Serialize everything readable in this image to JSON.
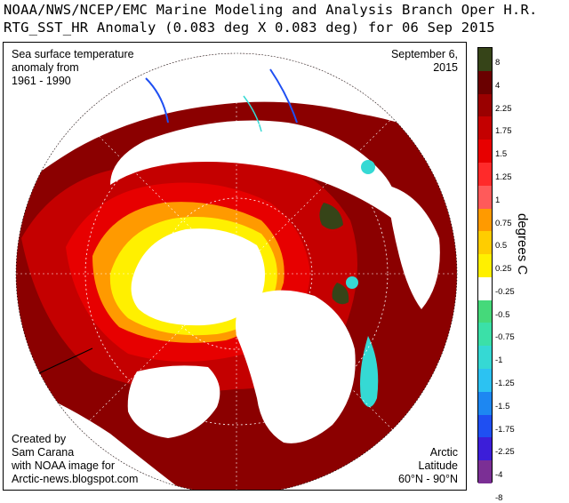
{
  "header": {
    "title_line1": "NOAA/NWS/NCEP/EMC Marine Modeling and Analysis Branch Oper H.R.",
    "title_line2": "RTG_SST_HR Anomaly (0.083 deg X 0.083 deg) for 06 Sep 2015"
  },
  "annotations": {
    "topleft": [
      "Sea surface temperature",
      "anomaly from",
      "1961 - 1990"
    ],
    "date": [
      "September 6,",
      "2015"
    ],
    "credit": [
      "Created by",
      "Sam Carana",
      "with NOAA image for",
      "Arctic-news.blogspot.com"
    ],
    "latitude": [
      "Arctic",
      "Latitude",
      "60°N - 90°N"
    ]
  },
  "colorbar": {
    "unit": "degrees C",
    "colors": [
      "#7b2f95",
      "#3c1ed9",
      "#1f4ff2",
      "#1d87f2",
      "#2cc2f2",
      "#35d9d4",
      "#3be0a8",
      "#45d97a",
      "#ffffff",
      "#fff000",
      "#ffcd00",
      "#ff9a00",
      "#ff5a5a",
      "#ff2a2a",
      "#e70000",
      "#c40000",
      "#9a0000",
      "#6a0000",
      "#364418"
    ],
    "labels": [
      "8",
      "4",
      "2.25",
      "1.75",
      "1.5",
      "1.25",
      "1",
      "0.75",
      "0.5",
      "0.25",
      "-0.25",
      "-0.5",
      "-0.75",
      "-1",
      "-1.25",
      "-1.5",
      "-1.75",
      "-2.25",
      "-4",
      "-8"
    ]
  },
  "map": {
    "projection": "polar stereographic",
    "ocean_color": "#8b0000",
    "ice_color": "#ffffff",
    "land_color": "#ffffff",
    "anomaly_hot": "#e70000",
    "anomaly_warm": "#fff000",
    "anomaly_cold": "#35d9d4",
    "anomaly_extreme": "#364418"
  }
}
